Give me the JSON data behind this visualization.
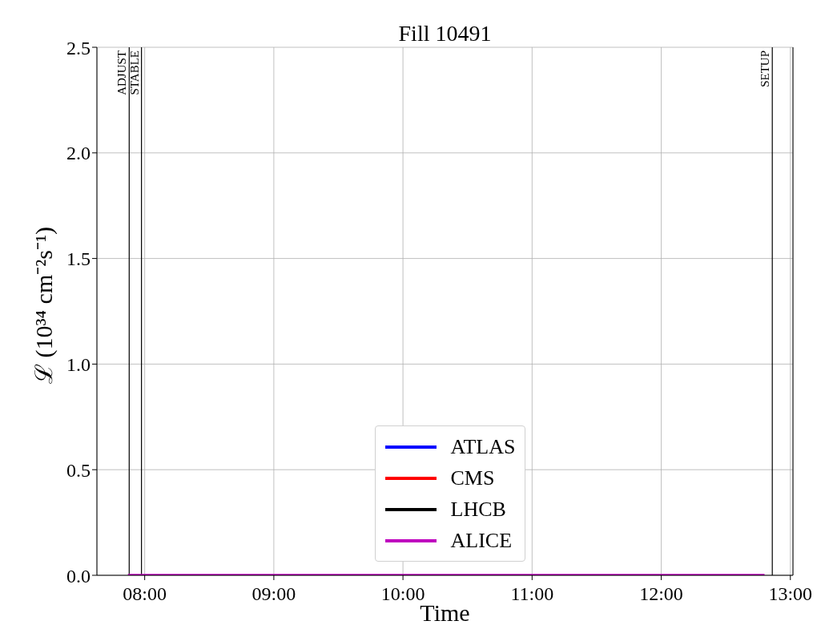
{
  "chart_data": {
    "type": "line",
    "title": "Fill 10491",
    "xlabel": "Time",
    "ylabel": "ℒ (10³⁴ cm⁻²s⁻¹)",
    "x": [
      7.87,
      12.8
    ],
    "series": [
      {
        "name": "ATLAS",
        "color": "#0000ff",
        "values": [
          null,
          null
        ]
      },
      {
        "name": "CMS",
        "color": "#ff0000",
        "values": [
          null,
          null
        ]
      },
      {
        "name": "LHCB",
        "color": "#000000",
        "values": [
          null,
          null
        ]
      },
      {
        "name": "ALICE",
        "color": "#bf00bf",
        "values": [
          0,
          0
        ]
      }
    ],
    "xlim": [
      7.63,
      13.02
    ],
    "xticks": [
      {
        "value": 8,
        "label": "08:00"
      },
      {
        "value": 9,
        "label": "09:00"
      },
      {
        "value": 10,
        "label": "10:00"
      },
      {
        "value": 11,
        "label": "11:00"
      },
      {
        "value": 12,
        "label": "12:00"
      },
      {
        "value": 13,
        "label": "13:00"
      }
    ],
    "ylim": [
      0,
      2.5
    ],
    "yticks": [
      {
        "value": 0,
        "label": "0.0"
      },
      0.5,
      {
        "value": 1,
        "label": "1.0"
      },
      1.5,
      {
        "value": 2,
        "label": "2.0"
      },
      2.5
    ],
    "ref_lines": [
      {
        "axis": "x",
        "value": 7.88,
        "label": "ADJUST",
        "color": "#000000"
      },
      {
        "axis": "x",
        "value": 7.975,
        "label": "STABLE",
        "color": "#000000"
      },
      {
        "axis": "x",
        "value": 12.86,
        "label": "SETUP",
        "color": "#000000"
      }
    ],
    "grid": true,
    "legend": "bottom",
    "marker": "none",
    "line_style": "solid"
  }
}
